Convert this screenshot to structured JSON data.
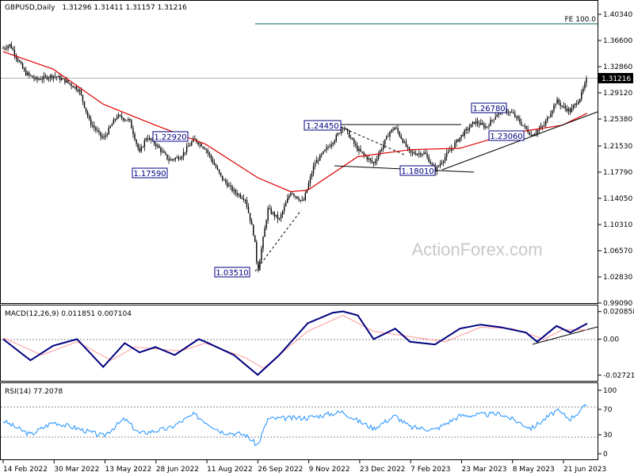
{
  "header": {
    "symbol": "GBPUSD,Daily",
    "ohlc": "1.31296 1.31411 1.31157 1.31216"
  },
  "watermark": "ActionForex.com",
  "price_panel": {
    "y_ticks": [
      "1.40340",
      "1.36600",
      "1.32860",
      "1.29120",
      "1.25380",
      "1.21530",
      "1.17790",
      "1.14050",
      "1.10310",
      "1.06570",
      "1.02830",
      "0.99090"
    ],
    "current_price": "1.31216",
    "fe_label": "FE 100.0",
    "levels": [
      {
        "label": "1.03510"
      },
      {
        "label": "1.17590"
      },
      {
        "label": "1.22920"
      },
      {
        "label": "1.24450"
      },
      {
        "label": "1.18010"
      },
      {
        "label": "1.26780"
      },
      {
        "label": "1.23060"
      }
    ]
  },
  "macd_panel": {
    "title": "MACD(12,26,9) 0.011851 0.007104",
    "y_ticks": [
      "0.020858",
      "0.00",
      "-0.027213"
    ]
  },
  "rsi_panel": {
    "title": "RSI(14) 77.2078",
    "y_ticks": [
      "100",
      "70",
      "30",
      "0"
    ]
  },
  "x_ticks": [
    "14 Feb 2022",
    "30 Mar 2022",
    "13 May 2022",
    "28 Jun 2022",
    "11 Aug 2022",
    "26 Sep 2022",
    "9 Nov 2022",
    "23 Dec 2022",
    "7 Feb 2023",
    "23 Mar 2023",
    "8 May 2023",
    "21 Jun 2023"
  ],
  "colors": {
    "candle": "#000000",
    "ma": "#e00000",
    "macd_line": "#000080",
    "macd_signal": "#ff9999",
    "rsi": "#1e90ff",
    "trendline": "#000000",
    "level_box": "#000080"
  },
  "chart_data": [
    {
      "type": "candlestick",
      "title": "GBPUSD,Daily",
      "ylim": [
        0.9909,
        1.4034
      ],
      "price_path": [
        [
          "2022-02-14",
          1.355
        ],
        [
          "2022-02-20",
          1.36
        ],
        [
          "2022-03-05",
          1.32
        ],
        [
          "2022-03-15",
          1.31
        ],
        [
          "2022-03-30",
          1.316
        ],
        [
          "2022-04-10",
          1.308
        ],
        [
          "2022-04-22",
          1.295
        ],
        [
          "2022-05-01",
          1.25
        ],
        [
          "2022-05-13",
          1.225
        ],
        [
          "2022-05-25",
          1.258
        ],
        [
          "2022-06-05",
          1.252
        ],
        [
          "2022-06-14",
          1.205
        ],
        [
          "2022-06-20",
          1.228
        ],
        [
          "2022-06-28",
          1.218
        ],
        [
          "2022-07-10",
          1.195
        ],
        [
          "2022-07-20",
          1.2
        ],
        [
          "2022-08-01",
          1.225
        ],
        [
          "2022-08-11",
          1.212
        ],
        [
          "2022-08-25",
          1.17
        ],
        [
          "2022-09-05",
          1.15
        ],
        [
          "2022-09-15",
          1.14
        ],
        [
          "2022-09-23",
          1.085
        ],
        [
          "2022-09-26",
          1.0351
        ],
        [
          "2022-10-05",
          1.125
        ],
        [
          "2022-10-15",
          1.11
        ],
        [
          "2022-10-25",
          1.15
        ],
        [
          "2022-11-05",
          1.135
        ],
        [
          "2022-11-15",
          1.19
        ],
        [
          "2022-11-25",
          1.21
        ],
        [
          "2022-12-05",
          1.23
        ],
        [
          "2022-12-10",
          1.2445
        ],
        [
          "2022-12-23",
          1.21
        ],
        [
          "2023-01-06",
          1.19
        ],
        [
          "2023-01-20",
          1.235
        ],
        [
          "2023-01-25",
          1.242
        ],
        [
          "2023-02-07",
          1.205
        ],
        [
          "2023-02-20",
          1.205
        ],
        [
          "2023-03-01",
          1.1801
        ],
        [
          "2023-03-10",
          1.2
        ],
        [
          "2023-03-23",
          1.228
        ],
        [
          "2023-04-05",
          1.25
        ],
        [
          "2023-04-15",
          1.242
        ],
        [
          "2023-04-28",
          1.2678
        ],
        [
          "2023-05-08",
          1.262
        ],
        [
          "2023-05-25",
          1.2306
        ],
        [
          "2023-06-05",
          1.245
        ],
        [
          "2023-06-16",
          1.28
        ],
        [
          "2023-06-21",
          1.272
        ],
        [
          "2023-06-28",
          1.265
        ],
        [
          "2023-07-07",
          1.285
        ],
        [
          "2023-07-13",
          1.3122
        ]
      ],
      "moving_average": [
        [
          "2022-02-14",
          1.35
        ],
        [
          "2022-03-30",
          1.325
        ],
        [
          "2022-05-13",
          1.275
        ],
        [
          "2022-06-28",
          1.245
        ],
        [
          "2022-08-11",
          1.218
        ],
        [
          "2022-09-26",
          1.17
        ],
        [
          "2022-10-25",
          1.15
        ],
        [
          "2022-11-09",
          1.152
        ],
        [
          "2022-12-23",
          1.2
        ],
        [
          "2023-02-07",
          1.21
        ],
        [
          "2023-03-23",
          1.212
        ],
        [
          "2023-05-08",
          1.234
        ],
        [
          "2023-06-21",
          1.245
        ],
        [
          "2023-07-13",
          1.262
        ]
      ],
      "annotations": [
        {
          "label": "1.03510",
          "date": "2022-09-26",
          "value": 1.0351
        },
        {
          "label": "1.17590",
          "date": "2022-06-14",
          "value": 1.1759
        },
        {
          "label": "1.22920",
          "date": "2022-06-28",
          "value": 1.2292
        },
        {
          "label": "1.24450",
          "date": "2022-12-10",
          "value": 1.2445
        },
        {
          "label": "1.18010",
          "date": "2023-03-01",
          "value": 1.1801
        },
        {
          "label": "1.26780",
          "date": "2023-04-28",
          "value": 1.2678
        },
        {
          "label": "1.23060",
          "date": "2023-05-25",
          "value": 1.2306
        },
        {
          "label": "FE 100.0",
          "value": 1.391
        }
      ],
      "current_price": 1.31216
    },
    {
      "type": "line",
      "title": "MACD(12,26,9) 0.011851 0.007104",
      "ylim": [
        -0.0315,
        0.0255
      ],
      "series": [
        {
          "values": [
            [
              "2022-02-14",
              0.0
            ],
            [
              "2022-03-10",
              -0.016
            ],
            [
              "2022-03-30",
              -0.005
            ],
            [
              "2022-04-20",
              0.0
            ],
            [
              "2022-05-13",
              -0.021
            ],
            [
              "2022-06-01",
              -0.003
            ],
            [
              "2022-06-14",
              -0.01
            ],
            [
              "2022-06-28",
              -0.006
            ],
            [
              "2022-07-15",
              -0.012
            ],
            [
              "2022-08-05",
              0.0
            ],
            [
              "2022-08-11",
              -0.002
            ],
            [
              "2022-09-05",
              -0.012
            ],
            [
              "2022-09-26",
              -0.027
            ],
            [
              "2022-10-15",
              -0.012
            ],
            [
              "2022-11-09",
              0.012
            ],
            [
              "2022-12-01",
              0.02
            ],
            [
              "2022-12-10",
              0.021
            ],
            [
              "2022-12-23",
              0.018
            ],
            [
              "2023-01-06",
              0.0
            ],
            [
              "2023-01-25",
              0.008
            ],
            [
              "2023-02-07",
              -0.002
            ],
            [
              "2023-03-01",
              -0.004
            ],
            [
              "2023-03-23",
              0.008
            ],
            [
              "2023-04-10",
              0.011
            ],
            [
              "2023-04-28",
              0.009
            ],
            [
              "2023-05-20",
              0.005
            ],
            [
              "2023-05-30",
              -0.002
            ],
            [
              "2023-06-16",
              0.01
            ],
            [
              "2023-06-28",
              0.005
            ],
            [
              "2023-07-13",
              0.0119
            ]
          ]
        },
        {
          "values": [
            [
              "2022-02-14",
              0.001
            ],
            [
              "2022-03-20",
              -0.012
            ],
            [
              "2022-04-20",
              -0.002
            ],
            [
              "2022-05-20",
              -0.016
            ],
            [
              "2022-06-10",
              -0.006
            ],
            [
              "2022-07-20",
              -0.009
            ],
            [
              "2022-08-11",
              -0.003
            ],
            [
              "2022-09-15",
              -0.014
            ],
            [
              "2022-10-01",
              -0.022
            ],
            [
              "2022-11-09",
              0.006
            ],
            [
              "2022-12-10",
              0.018
            ],
            [
              "2023-01-06",
              0.006
            ],
            [
              "2023-02-07",
              0.002
            ],
            [
              "2023-03-10",
              -0.002
            ],
            [
              "2023-04-10",
              0.009
            ],
            [
              "2023-05-08",
              0.008
            ],
            [
              "2023-06-05",
              0.0
            ],
            [
              "2023-06-21",
              0.007
            ],
            [
              "2023-07-13",
              0.0071
            ]
          ]
        }
      ]
    },
    {
      "type": "line",
      "title": "RSI(14) 77.2078",
      "ylim": [
        0,
        100
      ],
      "series": [
        {
          "values": [
            [
              "2022-02-14",
              52
            ],
            [
              "2022-03-10",
              30
            ],
            [
              "2022-03-30",
              50
            ],
            [
              "2022-04-20",
              40
            ],
            [
              "2022-05-13",
              28
            ],
            [
              "2022-06-01",
              55
            ],
            [
              "2022-06-14",
              32
            ],
            [
              "2022-07-10",
              40
            ],
            [
              "2022-08-01",
              62
            ],
            [
              "2022-08-25",
              35
            ],
            [
              "2022-09-15",
              30
            ],
            [
              "2022-09-26",
              13
            ],
            [
              "2022-10-05",
              55
            ],
            [
              "2022-11-09",
              57
            ],
            [
              "2022-12-10",
              66
            ],
            [
              "2022-12-23",
              52
            ],
            [
              "2023-01-06",
              40
            ],
            [
              "2023-01-25",
              60
            ],
            [
              "2023-02-07",
              42
            ],
            [
              "2023-03-01",
              38
            ],
            [
              "2023-03-23",
              60
            ],
            [
              "2023-04-28",
              63
            ],
            [
              "2023-05-25",
              40
            ],
            [
              "2023-06-16",
              68
            ],
            [
              "2023-06-28",
              55
            ],
            [
              "2023-07-13",
              77
            ]
          ]
        }
      ]
    }
  ]
}
